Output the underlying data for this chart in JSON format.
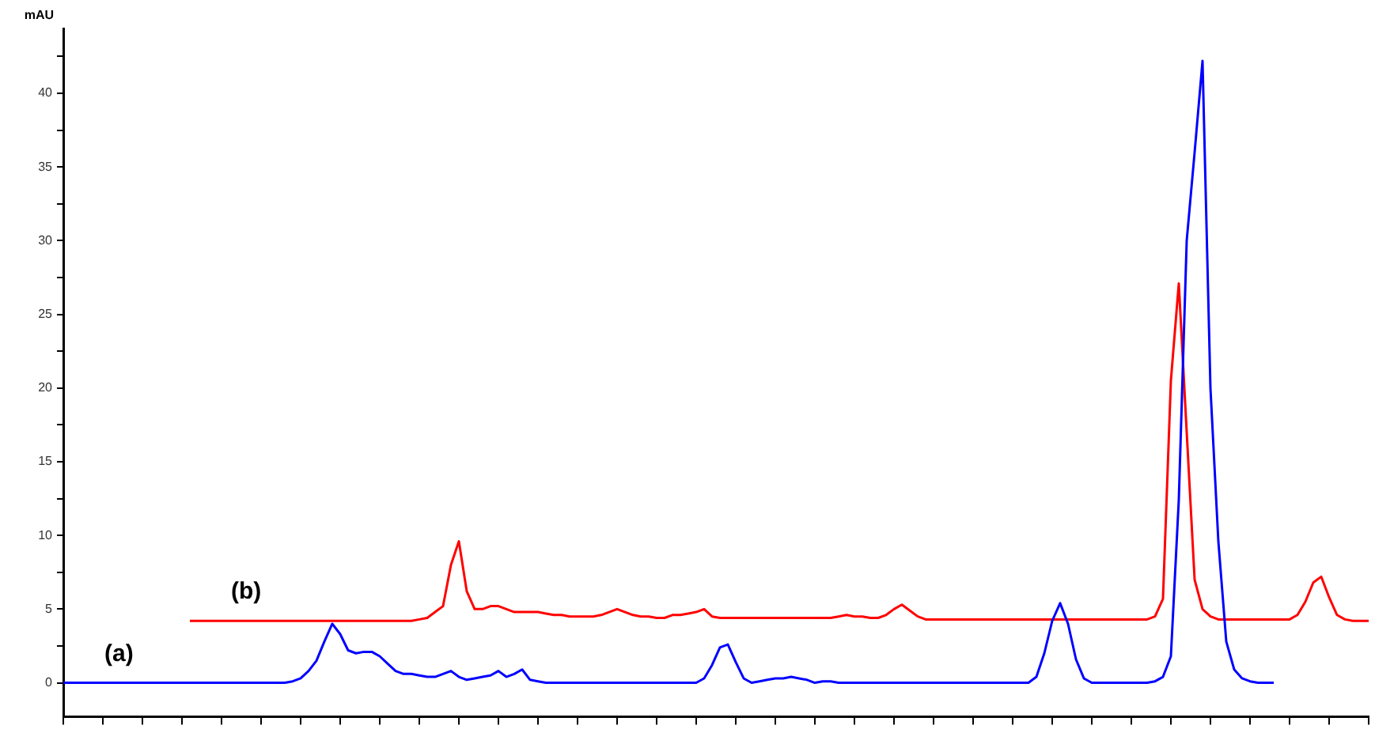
{
  "chart_data": {
    "type": "line",
    "ylabel": "mAU",
    "categories": [
      null,
      null,
      null,
      null,
      null,
      null,
      null,
      null,
      null,
      null,
      null,
      null,
      null,
      null,
      null,
      null,
      null,
      null,
      null,
      null,
      null,
      null,
      null,
      null,
      null,
      null,
      null,
      null,
      null,
      null,
      null,
      null,
      null,
      null,
      null,
      null,
      null,
      null,
      null,
      null,
      null,
      null,
      null,
      null,
      null,
      null,
      null,
      null,
      null,
      null,
      null,
      null,
      null,
      null,
      null,
      null,
      null,
      null,
      null,
      null,
      null,
      null,
      null,
      null,
      null,
      null,
      null,
      null,
      null,
      null,
      null,
      null,
      null,
      null,
      null,
      null,
      null,
      null,
      null,
      null,
      null,
      null,
      null,
      null,
      null,
      null,
      null,
      null,
      null,
      null,
      null,
      null,
      null,
      null,
      null,
      null,
      null,
      null,
      null,
      null,
      null,
      null,
      null,
      null,
      null,
      null,
      null,
      null,
      null,
      null,
      null,
      null,
      null,
      null,
      null,
      null,
      null,
      null,
      null,
      null,
      null,
      null,
      null,
      null,
      null,
      null,
      null,
      null,
      null,
      null,
      null,
      null,
      null,
      null,
      null,
      null,
      null,
      null,
      null,
      null,
      null,
      null,
      null,
      null,
      null,
      null,
      null,
      null,
      null,
      null,
      null,
      null,
      null,
      null,
      null,
      null,
      null,
      null,
      null,
      null,
      null,
      null,
      null,
      null,
      null,
      null
    ],
    "series": [
      {
        "name": "(a)",
        "color": "#0000ff",
        "values": [
          0,
          0,
          0,
          0,
          0,
          0,
          0,
          0,
          0,
          0,
          0,
          0,
          0,
          0,
          0,
          0,
          0,
          0,
          0,
          0,
          0,
          0,
          0,
          0,
          0,
          0,
          0,
          0,
          0,
          0.1,
          0.3,
          0.8,
          1.5,
          2.8,
          4.0,
          3.3,
          2.2,
          2.0,
          2.1,
          2.1,
          1.8,
          1.3,
          0.8,
          0.6,
          0.6,
          0.5,
          0.4,
          0.4,
          0.6,
          0.8,
          0.4,
          0.2,
          0.3,
          0.4,
          0.5,
          0.8,
          0.4,
          0.6,
          0.9,
          0.2,
          0.1,
          0,
          0,
          0,
          0,
          0,
          0,
          0,
          0,
          0,
          0,
          0,
          0,
          0,
          0,
          0,
          0,
          0,
          0,
          0,
          0,
          0.3,
          1.2,
          2.4,
          2.6,
          1.4,
          0.3,
          0,
          0.1,
          0.2,
          0.3,
          0.3,
          0.4,
          0.3,
          0.2,
          0,
          0.1,
          0.1,
          0,
          0,
          0,
          0,
          0,
          0,
          0,
          0,
          0,
          0,
          0,
          0,
          0,
          0,
          0,
          0,
          0,
          0,
          0,
          0,
          0,
          0,
          0,
          0,
          0,
          0.4,
          2.0,
          4.2,
          5.4,
          4.0,
          1.6,
          0.3,
          0,
          0,
          0,
          0,
          0,
          0,
          0,
          0,
          0.1,
          0.4,
          1.8,
          12.4,
          30,
          36,
          42.2,
          20,
          9.6,
          2.8,
          0.9,
          0.3,
          0.1,
          0,
          0,
          0,
          null,
          null,
          null,
          null,
          null,
          null,
          null,
          null,
          null,
          null,
          null,
          null
        ]
      },
      {
        "name": "(b)",
        "color": "#ff0000",
        "values": [
          null,
          null,
          null,
          null,
          null,
          null,
          null,
          null,
          null,
          null,
          null,
          null,
          null,
          null,
          null,
          null,
          4.2,
          4.2,
          4.2,
          4.2,
          4.2,
          4.2,
          4.2,
          4.2,
          4.2,
          4.2,
          4.2,
          4.2,
          4.2,
          4.2,
          4.2,
          4.2,
          4.2,
          4.2,
          4.2,
          4.2,
          4.2,
          4.2,
          4.2,
          4.2,
          4.2,
          4.2,
          4.2,
          4.2,
          4.2,
          4.3,
          4.4,
          4.8,
          5.2,
          8.0,
          9.6,
          6.2,
          5.0,
          5.0,
          5.2,
          5.2,
          5.0,
          4.8,
          4.8,
          4.8,
          4.8,
          4.7,
          4.6,
          4.6,
          4.5,
          4.5,
          4.5,
          4.5,
          4.6,
          4.8,
          5.0,
          4.8,
          4.6,
          4.5,
          4.5,
          4.4,
          4.4,
          4.6,
          4.6,
          4.7,
          4.8,
          5.0,
          4.5,
          4.4,
          4.4,
          4.4,
          4.4,
          4.4,
          4.4,
          4.4,
          4.4,
          4.4,
          4.4,
          4.4,
          4.4,
          4.4,
          4.4,
          4.4,
          4.5,
          4.6,
          4.5,
          4.5,
          4.4,
          4.4,
          4.6,
          5.0,
          5.3,
          4.9,
          4.5,
          4.3,
          4.3,
          4.3,
          4.3,
          4.3,
          4.3,
          4.3,
          4.3,
          4.3,
          4.3,
          4.3,
          4.3,
          4.3,
          4.3,
          4.3,
          4.3,
          4.3,
          4.3,
          4.3,
          4.3,
          4.3,
          4.3,
          4.3,
          4.3,
          4.3,
          4.3,
          4.3,
          4.3,
          4.3,
          4.5,
          5.7,
          20.5,
          27.1,
          17,
          7,
          5.0,
          4.5,
          4.3,
          4.3,
          4.3,
          4.3,
          4.3,
          4.3,
          4.3,
          4.3,
          4.3,
          4.3,
          4.6,
          5.5,
          6.8,
          7.2,
          5.8,
          4.6,
          4.3,
          4.2,
          4.2,
          4.2
        ]
      }
    ],
    "ylim": [
      -2.3,
      44.4
    ],
    "yticks": [
      0,
      {
        "value": 2.5,
        "label": null
      },
      5,
      {
        "value": 7.5,
        "label": null
      },
      10,
      {
        "value": 12.5,
        "label": null
      },
      15,
      {
        "value": 17.5,
        "label": null
      },
      20,
      {
        "value": 22.5,
        "label": null
      },
      25,
      {
        "value": 27.5,
        "label": null
      },
      30,
      {
        "value": 32.5,
        "label": null
      },
      35,
      {
        "value": 37.5,
        "label": null
      },
      40,
      {
        "value": 42.5,
        "label": null
      }
    ],
    "tick_labels": "y",
    "grid": false,
    "legend": false,
    "marker": "none",
    "line_style": "solid"
  }
}
